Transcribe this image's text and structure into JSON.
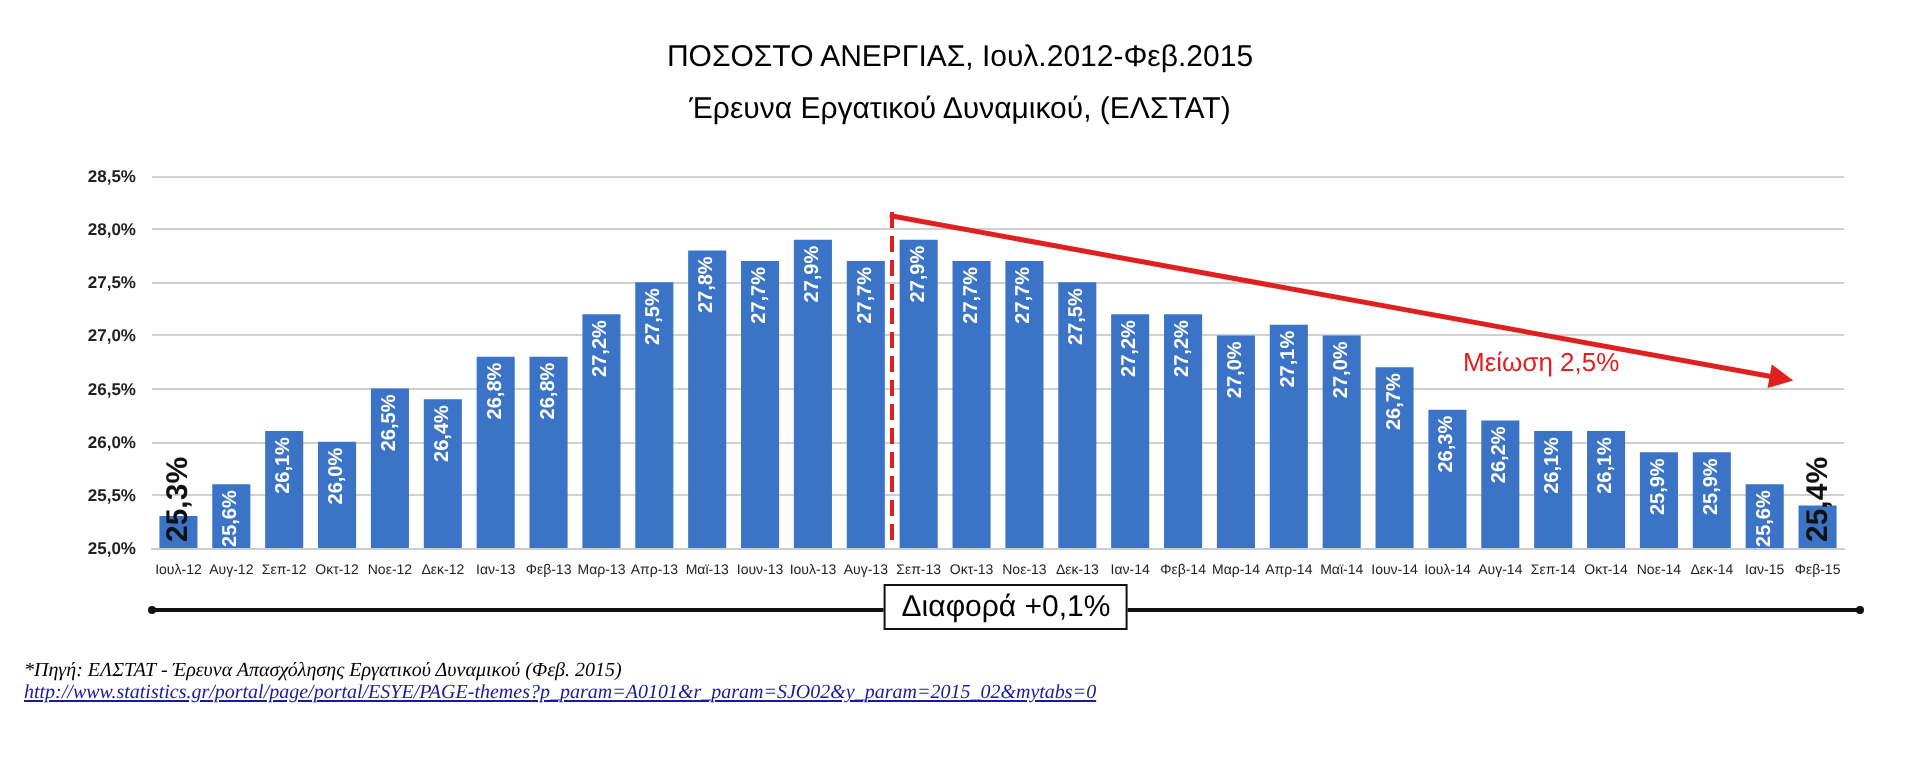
{
  "chart_data": {
    "type": "bar",
    "title": "ΠΟΣΟΣΤΟ ΑΝΕΡΓΙΑΣ, Ιουλ.2012-Φεβ.2015",
    "subtitle": "Έρευνα Εργατικού Δυναμικού, (ΕΛΣΤΑΤ)",
    "categories": [
      "Ιουλ-12",
      "Αυγ-12",
      "Σεπ-12",
      "Οκτ-12",
      "Νοε-12",
      "Δεκ-12",
      "Ιαν-13",
      "Φεβ-13",
      "Μαρ-13",
      "Απρ-13",
      "Μαϊ-13",
      "Ιουν-13",
      "Ιουλ-13",
      "Αυγ-13",
      "Σεπ-13",
      "Οκτ-13",
      "Νοε-13",
      "Δεκ-13",
      "Ιαν-14",
      "Φεβ-14",
      "Μαρ-14",
      "Απρ-14",
      "Μαϊ-14",
      "Ιουν-14",
      "Ιουλ-14",
      "Αυγ-14",
      "Σεπ-14",
      "Οκτ-14",
      "Νοε-14",
      "Δεκ-14",
      "Ιαν-15",
      "Φεβ-15"
    ],
    "series": [
      {
        "color": "#3b74c6",
        "values": [
          25.3,
          25.6,
          26.1,
          26.0,
          26.5,
          26.4,
          26.8,
          26.8,
          27.2,
          27.5,
          27.8,
          27.7,
          27.9,
          27.7,
          27.9,
          27.7,
          27.7,
          27.5,
          27.2,
          27.2,
          27.0,
          27.1,
          27.0,
          26.7,
          26.3,
          26.2,
          26.1,
          26.1,
          25.9,
          25.9,
          25.6,
          25.4
        ],
        "value_labels": [
          "25,3%",
          "25,6%",
          "26,1%",
          "26,0%",
          "26,5%",
          "26,4%",
          "26,8%",
          "26,8%",
          "27,2%",
          "27,5%",
          "27,8%",
          "27,7%",
          "27,9%",
          "27,7%",
          "27,9%",
          "27,7%",
          "27,7%",
          "27,5%",
          "27,2%",
          "27,2%",
          "27,0%",
          "27,1%",
          "27,0%",
          "26,7%",
          "26,3%",
          "26,2%",
          "26,1%",
          "26,1%",
          "25,9%",
          "25,9%",
          "25,6%",
          "25,4%"
        ]
      }
    ],
    "ylim": [
      25,
      28.5
    ],
    "yticks": [
      {
        "value": 25,
        "label": "25,0%"
      },
      {
        "value": 25.5,
        "label": "25,5%"
      },
      {
        "value": 26,
        "label": "26,0%"
      },
      {
        "value": 26.5,
        "label": "26,5%"
      },
      {
        "value": 27,
        "label": "27,0%"
      },
      {
        "value": 27.5,
        "label": "27,5%"
      },
      {
        "value": 28,
        "label": "28,0%"
      },
      {
        "value": 28.5,
        "label": "28,5%"
      }
    ],
    "grid": "y",
    "ref_lines": [
      {
        "axis": "x",
        "value": "Σεπ-13",
        "label": null,
        "color": "#e0201e",
        "line_style": "dashed"
      }
    ],
    "annotations": [
      "Μείωση 2,5%",
      "Διαφορά +0,1%",
      "*Πηγή: ΕΛΣΤΑΤ - Έρευνα Απασχόλησης Εργατικού Δυναμικού (Φεβ. 2015)",
      "http://www.statistics.gr/portal/page/portal/ESYE/PAGE-themes?p_param=A0101&r_param=SJO02&y_param=2015_02&mytabs=0"
    ]
  }
}
